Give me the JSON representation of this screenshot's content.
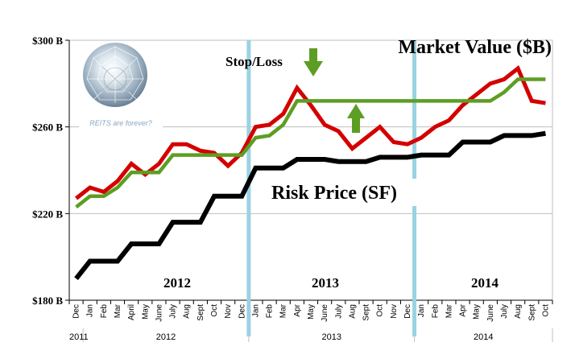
{
  "chart_data": {
    "type": "line",
    "title": "Market Value ($B)",
    "y_tick_labels": [
      "$300 B",
      "$260 B",
      "$220 B",
      "$180 B"
    ],
    "y_ticks": [
      300,
      260,
      220,
      180
    ],
    "ylim": [
      180,
      300
    ],
    "grid": true,
    "categories": [
      "Dec",
      "Jan",
      "Feb",
      "Mar",
      "April",
      "May",
      "June",
      "July",
      "Aug",
      "Sept",
      "Oct",
      "Nov",
      "Dec",
      "Jan",
      "Feb",
      "Mar",
      "Apr",
      "May",
      "June",
      "July",
      "Aug",
      "Sept",
      "Oct",
      "Nov",
      "Dec",
      "Jan",
      "Feb",
      "Mar",
      "Apr",
      "May",
      "June",
      "July",
      "Aug",
      "Sept",
      "Oct"
    ],
    "year_labels": [
      {
        "label": "2011",
        "start": 0,
        "end": 0
      },
      {
        "label": "2012",
        "start": 1,
        "end": 12
      },
      {
        "label": "2013",
        "start": 13,
        "end": 24
      },
      {
        "label": "2014",
        "start": 25,
        "end": 34
      }
    ],
    "series": [
      {
        "color": "#d40000",
        "values": [
          227,
          232,
          230,
          235,
          243,
          238,
          243,
          252,
          252,
          249,
          248,
          242,
          248,
          260,
          261,
          266,
          278,
          270,
          261,
          258,
          250,
          255,
          260,
          253,
          252,
          255,
          260,
          263,
          270,
          275,
          280,
          282,
          287,
          272,
          271
        ]
      },
      {
        "color": "#5c9e23",
        "values": [
          223,
          228,
          228,
          232,
          239,
          239,
          239,
          247,
          247,
          247,
          247,
          247,
          247,
          255,
          256,
          261,
          272,
          272,
          272,
          272,
          272,
          272,
          272,
          272,
          272,
          272,
          272,
          272,
          272,
          272,
          272,
          276,
          282,
          282,
          282
        ]
      },
      {
        "color": "#000000",
        "values": [
          190,
          198,
          198,
          198,
          206,
          206,
          206,
          216,
          216,
          216,
          228,
          228,
          228,
          241,
          241,
          241,
          245,
          245,
          245,
          244,
          244,
          244,
          246,
          246,
          246,
          247,
          247,
          247,
          253,
          253,
          253,
          256,
          256,
          256,
          257
        ]
      }
    ],
    "vertical_lines": [
      {
        "color": "#9ad2e2",
        "after_index": 12.5
      },
      {
        "color": "#9ad2e2",
        "after_index": 24.5
      }
    ],
    "annotations": [
      {
        "text": "Stop/Loss"
      },
      {
        "text": "Risk Price (SF)"
      },
      {
        "text": "2012"
      },
      {
        "text": "2013"
      },
      {
        "text": "2014"
      },
      {
        "text": "REITS are forever?"
      }
    ],
    "arrow_color": "#5c9e23"
  }
}
